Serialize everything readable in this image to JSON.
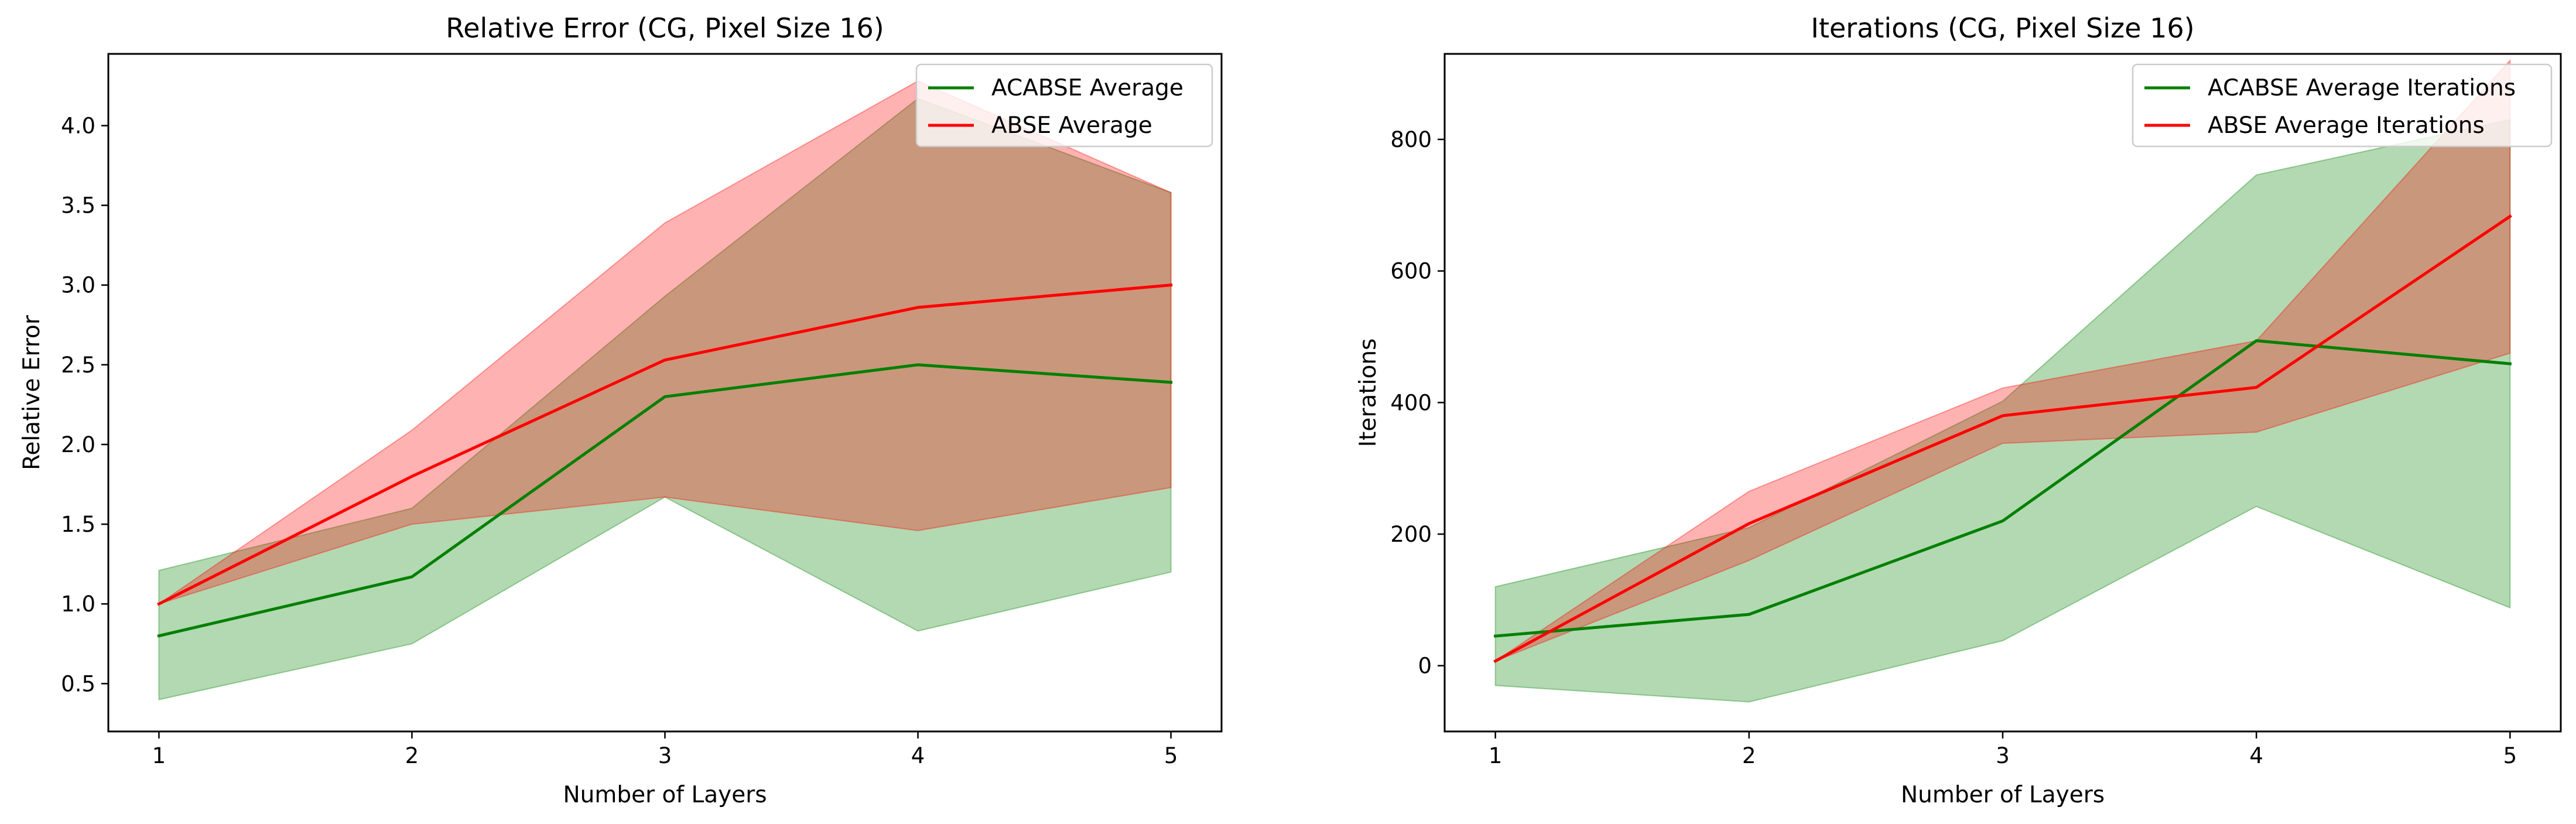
{
  "chart_data": [
    {
      "type": "line",
      "title": "Relative Error (CG, Pixel Size 16)",
      "xlabel": "Number of Layers",
      "ylabel": "Relative Error",
      "x": [
        1,
        2,
        3,
        4,
        5
      ],
      "xlim": [
        0.8,
        5.2
      ],
      "ylim": [
        0.2,
        4.45
      ],
      "xticks": [
        1,
        2,
        3,
        4,
        5
      ],
      "yticks": [
        0.5,
        1.0,
        1.5,
        2.0,
        2.5,
        3.0,
        3.5,
        4.0
      ],
      "ytick_labels": [
        "0.5",
        "1.0",
        "1.5",
        "2.0",
        "2.5",
        "3.0",
        "3.5",
        "4.0"
      ],
      "legend_position": "top-right",
      "series": [
        {
          "name": "ACABSE Average",
          "color": "#008000",
          "values": [
            0.8,
            1.17,
            2.3,
            2.5,
            2.39
          ],
          "band_low": [
            0.4,
            0.75,
            1.67,
            0.83,
            1.2
          ],
          "band_high": [
            1.21,
            1.6,
            2.93,
            4.17,
            3.58
          ]
        },
        {
          "name": "ABSE Average",
          "color": "#ff0000",
          "values": [
            1.0,
            1.8,
            2.53,
            2.86,
            3.0
          ],
          "band_low": [
            1.0,
            1.5,
            1.67,
            1.46,
            1.73
          ],
          "band_high": [
            1.0,
            2.09,
            3.39,
            4.28,
            3.58
          ]
        }
      ]
    },
    {
      "type": "line",
      "title": "Iterations (CG, Pixel Size 16)",
      "xlabel": "Number of Layers",
      "ylabel": "Iterations",
      "x": [
        1,
        2,
        3,
        4,
        5
      ],
      "xlim": [
        0.8,
        5.2
      ],
      "ylim": [
        -100,
        930
      ],
      "xticks": [
        1,
        2,
        3,
        4,
        5
      ],
      "yticks": [
        0,
        200,
        400,
        600,
        800
      ],
      "ytick_labels": [
        "0",
        "200",
        "400",
        "600",
        "800"
      ],
      "legend_position": "top-right",
      "series": [
        {
          "name": "ACABSE Average Iterations",
          "color": "#008000",
          "values": [
            45,
            78,
            220,
            494,
            459
          ],
          "band_low": [
            -30,
            -55,
            38,
            242,
            88
          ],
          "band_high": [
            120,
            210,
            402,
            746,
            830
          ]
        },
        {
          "name": "ABSE Average Iterations",
          "color": "#ff0000",
          "values": [
            7,
            216,
            380,
            423,
            683
          ],
          "band_low": [
            7,
            160,
            338,
            355,
            475
          ],
          "band_high": [
            7,
            265,
            422,
            494,
            920
          ]
        }
      ]
    }
  ]
}
